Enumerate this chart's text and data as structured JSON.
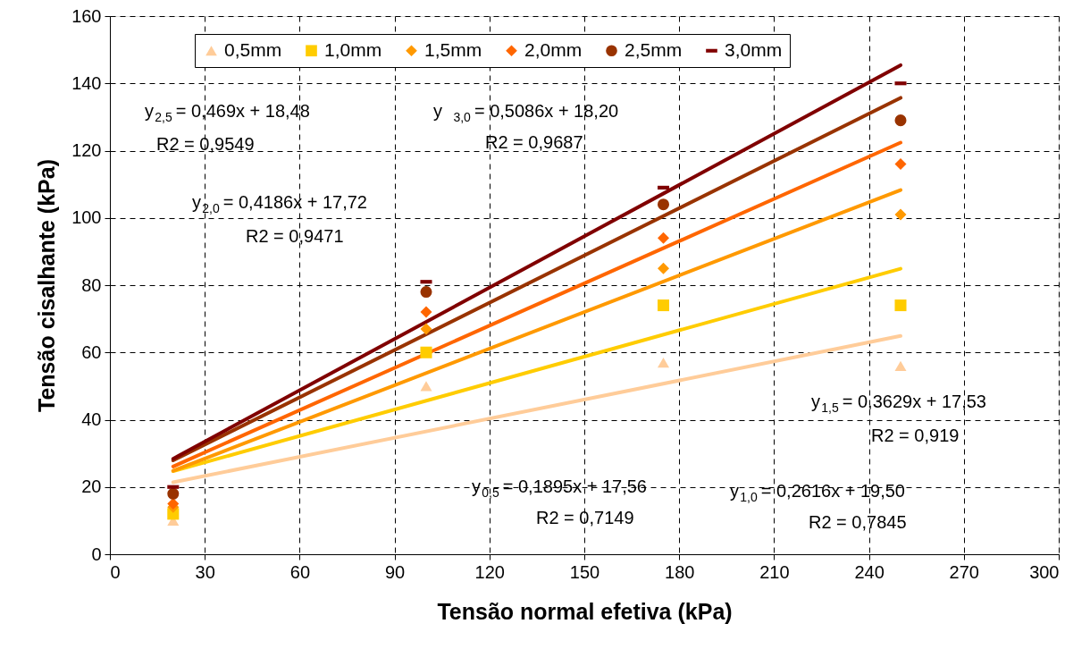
{
  "chart_data": {
    "type": "scatter",
    "xlabel": "Tensão normal efetiva (kPa)",
    "ylabel": "Tensão cisalhante (kPa)",
    "xlim": [
      0,
      300
    ],
    "xticks": [
      0,
      30,
      60,
      90,
      120,
      150,
      180,
      210,
      240,
      270,
      300
    ],
    "ylim": [
      0,
      160
    ],
    "yticks": [
      0,
      20,
      40,
      60,
      80,
      100,
      120,
      140,
      160
    ],
    "grid": true,
    "legend": "top",
    "series": [
      {
        "name": "0,5mm",
        "color": "#ffcc99",
        "marker": "triangle",
        "x": [
          20,
          100,
          175,
          250
        ],
        "values": [
          10,
          50,
          57,
          56
        ]
      },
      {
        "name": "1,0mm",
        "color": "#ffcc00",
        "marker": "square",
        "x": [
          20,
          100,
          175,
          250
        ],
        "values": [
          12,
          60,
          74,
          74
        ]
      },
      {
        "name": "1,5mm",
        "color": "#ff9900",
        "marker": "diamond",
        "x": [
          20,
          100,
          175,
          250
        ],
        "values": [
          14,
          67,
          85,
          101
        ]
      },
      {
        "name": "2,0mm",
        "color": "#ff6600",
        "marker": "diamond",
        "x": [
          20,
          100,
          175,
          250
        ],
        "values": [
          15,
          72,
          94,
          116
        ]
      },
      {
        "name": "2,5mm",
        "color": "#993300",
        "marker": "circle",
        "x": [
          20,
          100,
          175,
          250
        ],
        "values": [
          18,
          78,
          104,
          129
        ]
      },
      {
        "name": "3,0mm",
        "color": "#800000",
        "x": [
          20,
          100,
          175,
          250
        ],
        "values": [
          20,
          81,
          109,
          140
        ]
      },
      {
        "type": "line",
        "color": "#ffcc99",
        "x": [
          20,
          250
        ],
        "values": [
          21.4,
          64.9
        ]
      },
      {
        "type": "line",
        "color": "#ffcc00",
        "x": [
          20,
          250
        ],
        "values": [
          24.7,
          84.9
        ]
      },
      {
        "type": "line",
        "color": "#ff9900",
        "x": [
          20,
          250
        ],
        "values": [
          24.8,
          108.3
        ]
      },
      {
        "type": "line",
        "color": "#ff6600",
        "x": [
          20,
          250
        ],
        "values": [
          26.1,
          122.4
        ]
      },
      {
        "type": "line",
        "color": "#993300",
        "x": [
          20,
          250
        ],
        "values": [
          27.9,
          135.7
        ]
      },
      {
        "type": "line",
        "color": "#800000",
        "x": [
          20,
          250
        ],
        "values": [
          28.4,
          145.4
        ]
      }
    ],
    "annotations": [
      "y$_{2,5}$ = 0,469x + 18,48",
      "R2 = 0,9549",
      "y $_{3,0}$= 0,5086x + 18,20",
      "R2 = 0,9687",
      "y$_{2,0}$ = 0,4186x + 17,72",
      "R2 = 0,9471",
      "y$_{1,5}$ = 0,3629x + 17,53",
      "R2 = 0,919",
      "y$_{0,5}$ = 0,1895x + 17,56",
      "R2 = 0,7149",
      "y$_{1,0}$ = 0,2616x + 19,50",
      "R2 = 0,7845"
    ]
  }
}
